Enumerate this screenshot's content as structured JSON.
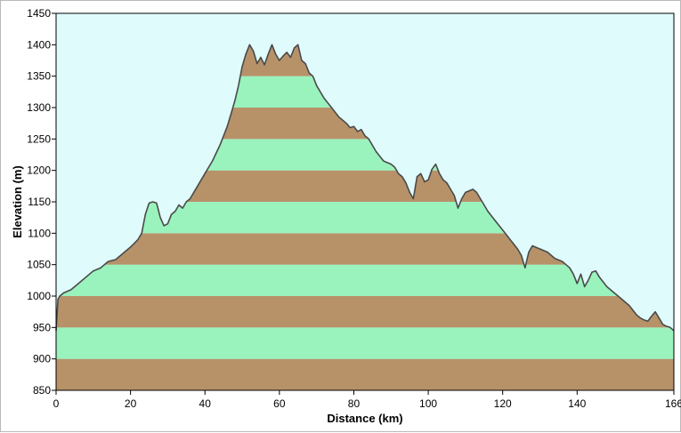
{
  "chart_data": {
    "type": "area",
    "xlabel": "Distance  (km)",
    "ylabel": "Elevation (m)",
    "xlim": [
      0,
      166
    ],
    "ylim": [
      850,
      1450
    ],
    "xticks": [
      0,
      20,
      40,
      60,
      80,
      100,
      120,
      140,
      166
    ],
    "yticks": [
      850,
      900,
      950,
      1000,
      1050,
      1100,
      1150,
      1200,
      1250,
      1300,
      1350,
      1400,
      1450
    ],
    "band_height": 50,
    "grid": false,
    "colors": {
      "background": "#dffbfb",
      "band_brown": "#b79269",
      "band_green": "#9af2bd",
      "profile_line": "#4a4a4a"
    },
    "series": [
      {
        "x": [
          0,
          0.5,
          1,
          2,
          4,
          6,
          8,
          10,
          12,
          14,
          16,
          18,
          20,
          22,
          23,
          24,
          25,
          26,
          27,
          28,
          29,
          30,
          31,
          32,
          33,
          34,
          35,
          36,
          38,
          40,
          42,
          44,
          46,
          47,
          48,
          49,
          50,
          51,
          52,
          53,
          54,
          55,
          56,
          57,
          58,
          59,
          60,
          61,
          62,
          63,
          64,
          65,
          66,
          67,
          68,
          69,
          70,
          72,
          74,
          76,
          78,
          79,
          80,
          81,
          82,
          83,
          84,
          86,
          88,
          90,
          91,
          92,
          93,
          94,
          95,
          96,
          97,
          98,
          99,
          100,
          101,
          102,
          103,
          104,
          105,
          106,
          107,
          108,
          109,
          110,
          112,
          113,
          114,
          115,
          116,
          118,
          120,
          122,
          124,
          125,
          126,
          127,
          128,
          130,
          132,
          134,
          136,
          138,
          139,
          140,
          141,
          142,
          143,
          144,
          145,
          146,
          148,
          150,
          152,
          154,
          156,
          157,
          158,
          159,
          160,
          161,
          162,
          163,
          164,
          165,
          166
        ],
        "y": [
          945,
          995,
          1000,
          1005,
          1010,
          1020,
          1030,
          1040,
          1045,
          1055,
          1058,
          1068,
          1078,
          1090,
          1100,
          1130,
          1148,
          1150,
          1148,
          1125,
          1112,
          1115,
          1130,
          1135,
          1145,
          1140,
          1150,
          1155,
          1175,
          1195,
          1215,
          1240,
          1270,
          1290,
          1310,
          1335,
          1365,
          1385,
          1400,
          1390,
          1370,
          1380,
          1368,
          1385,
          1400,
          1385,
          1375,
          1382,
          1388,
          1380,
          1395,
          1400,
          1375,
          1370,
          1355,
          1350,
          1335,
          1315,
          1300,
          1285,
          1275,
          1268,
          1270,
          1262,
          1265,
          1255,
          1250,
          1230,
          1215,
          1210,
          1205,
          1195,
          1190,
          1180,
          1165,
          1155,
          1190,
          1195,
          1182,
          1185,
          1202,
          1210,
          1195,
          1185,
          1180,
          1170,
          1160,
          1140,
          1155,
          1165,
          1170,
          1165,
          1155,
          1145,
          1135,
          1120,
          1105,
          1090,
          1075,
          1065,
          1045,
          1070,
          1080,
          1075,
          1070,
          1060,
          1055,
          1045,
          1035,
          1020,
          1035,
          1015,
          1025,
          1038,
          1040,
          1030,
          1015,
          1005,
          995,
          985,
          970,
          965,
          962,
          960,
          968,
          975,
          965,
          955,
          952,
          950,
          945
        ]
      }
    ]
  }
}
